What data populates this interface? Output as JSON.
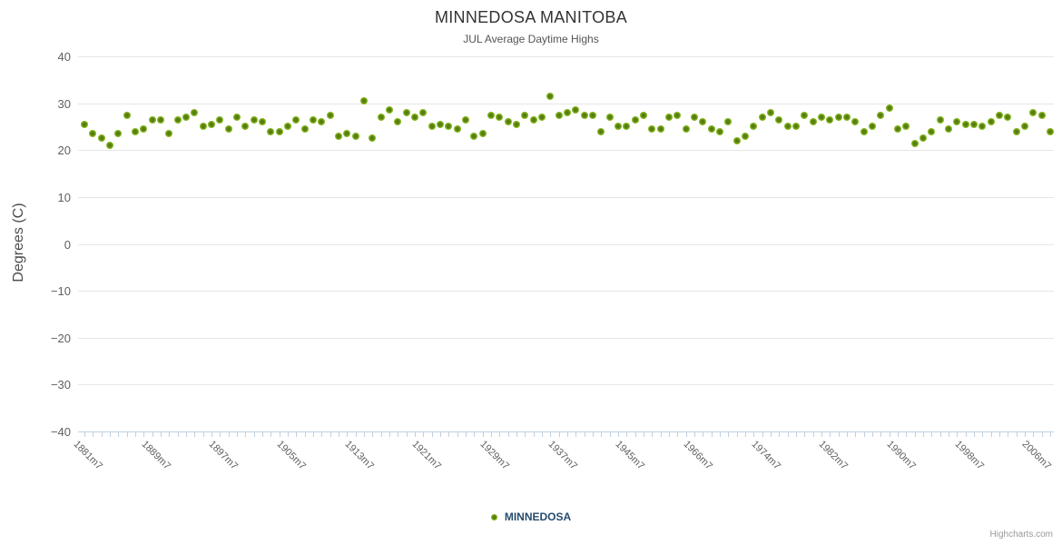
{
  "header": {
    "title": "MINNEDOSA MANITOBA",
    "subtitle": "JUL Average Daytime Highs"
  },
  "legend": {
    "items": [
      {
        "label": "MINNEDOSA",
        "color": "#8abb21"
      }
    ]
  },
  "credits": {
    "label": "Highcharts.com"
  },
  "colors": {
    "series_green": "#8abb21",
    "series_green_dark": "#567d10",
    "grid": "#e6e6e6",
    "axis_line": "#c0d0e0",
    "tick": "#c0d0e0",
    "axis_text": "#606060",
    "title_text": "#333333",
    "subtitle_text": "#555555",
    "legend_text": "#274b6d",
    "credits_text": "#999999"
  },
  "chart_data": {
    "type": "scatter",
    "title": "MINNEDOSA MANITOBA",
    "subtitle": "JUL Average Daytime Highs",
    "xlabel": "",
    "ylabel": "Degrees (C)",
    "ylim": [
      -40,
      40
    ],
    "y_tick_step": 10,
    "y_tick_labels": [
      "40",
      "30",
      "20",
      "10",
      "0",
      "−10",
      "−20",
      "−30",
      "−40"
    ],
    "x_tick_labels": [
      "1881m7",
      "1889m7",
      "1897m7",
      "1905m7",
      "1913m7",
      "1921m7",
      "1929m7",
      "1937m7",
      "1945m7",
      "1966m7",
      "1974m7",
      "1982m7",
      "1990m7",
      "1998m7",
      "2006m7"
    ],
    "x_label_interval": 8,
    "grid": "horizontal-only",
    "legend_position": "bottom-center",
    "series": [
      {
        "name": "MINNEDOSA",
        "color": "#8abb21",
        "values": [
          25.5,
          23.5,
          22.5,
          21,
          23.5,
          27.5,
          24,
          24.5,
          26.5,
          26.5,
          23.5,
          26.5,
          27,
          28,
          25,
          25.5,
          26.5,
          24.5,
          27,
          25,
          26.5,
          26,
          24,
          24,
          25,
          26.5,
          24.5,
          26.5,
          26,
          27.5,
          23,
          23.5,
          23,
          30.5,
          22.5,
          27,
          28.5,
          26,
          28,
          27,
          28,
          25,
          25.5,
          25,
          24.5,
          26.5,
          23,
          23.5,
          27.5,
          27,
          26,
          25.5,
          27.5,
          26.5,
          27,
          31.5,
          27.5,
          28,
          28.5,
          27.5,
          27.5,
          24,
          27,
          25,
          25,
          26.5,
          27.5,
          24.5,
          24.5,
          27,
          27.5,
          24.5,
          27,
          26,
          24.5,
          24,
          26,
          22,
          23,
          25,
          27,
          28,
          26.5,
          25,
          25,
          27.5,
          26,
          27,
          26.5,
          27,
          27,
          26,
          24,
          25,
          27.5,
          29,
          24.5,
          25,
          21.5,
          22.5,
          24,
          26.5,
          24.5,
          26,
          25.5,
          25.5,
          25,
          26,
          27.5,
          27,
          24,
          25,
          28,
          27.5,
          24
        ]
      }
    ]
  }
}
